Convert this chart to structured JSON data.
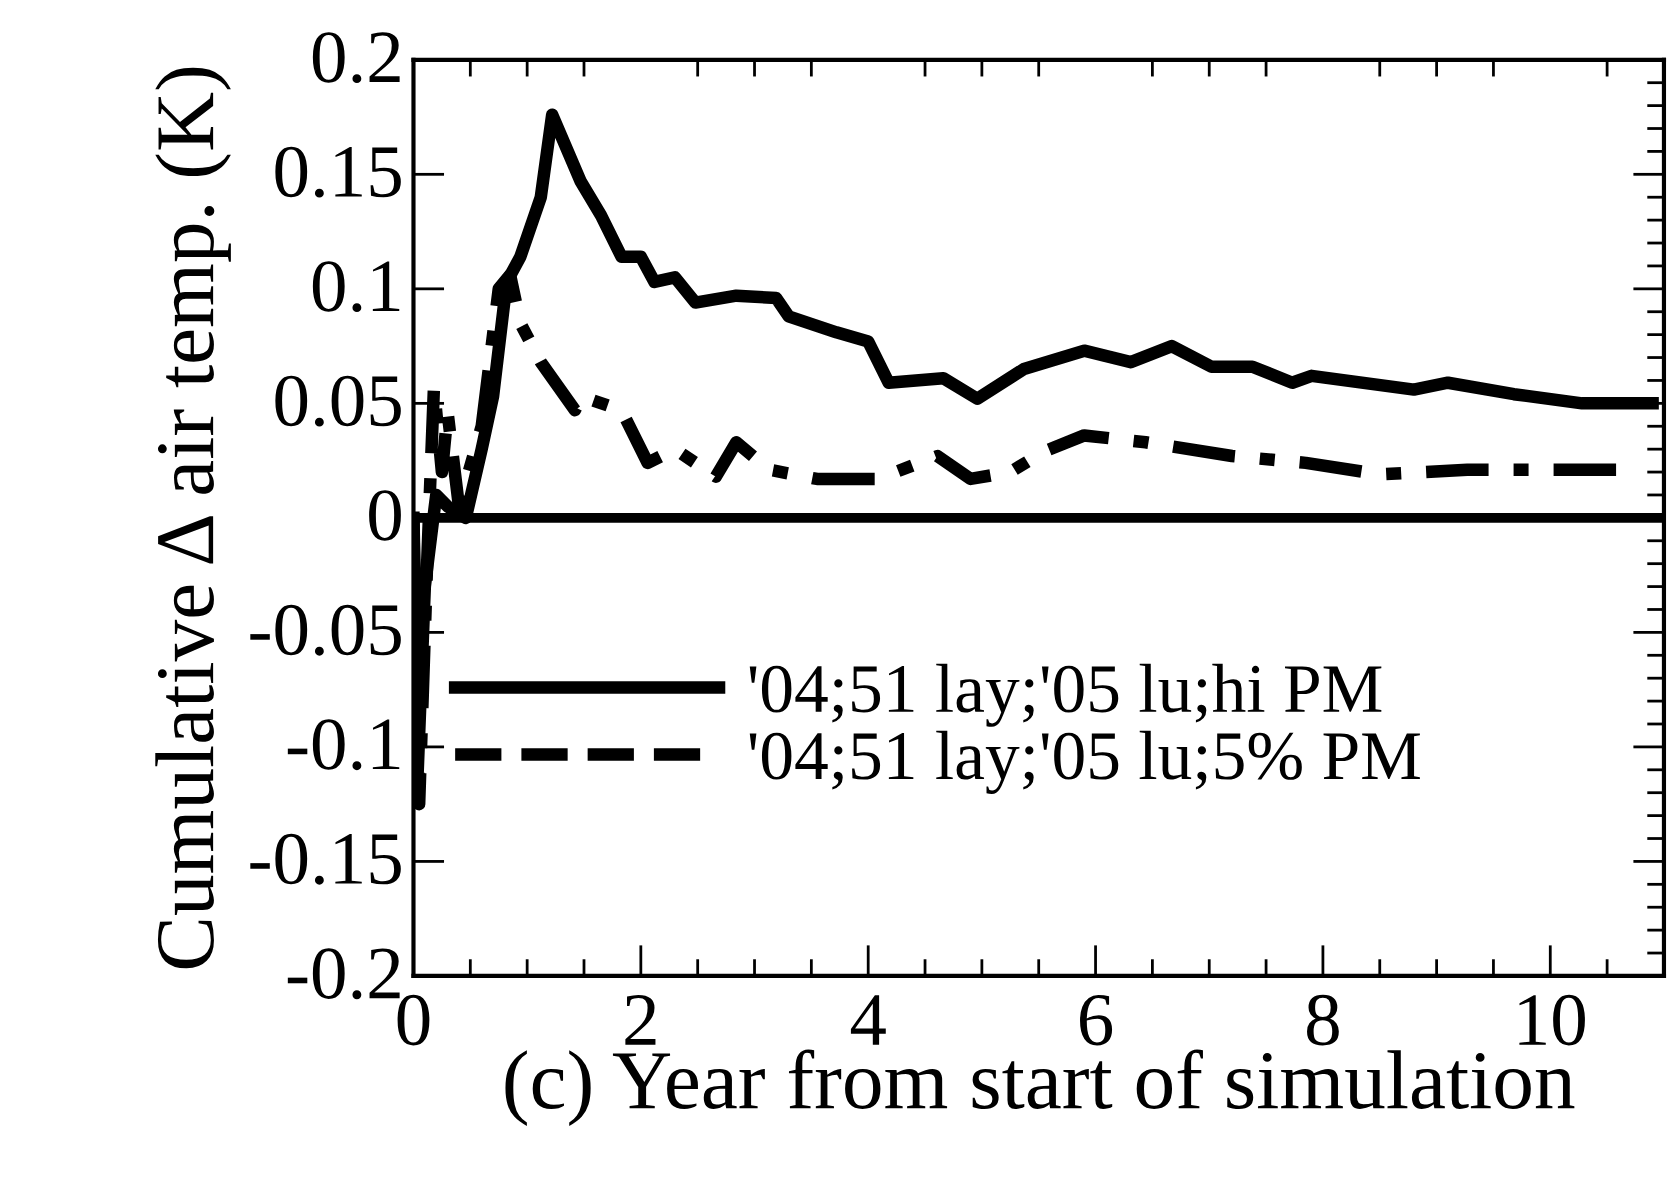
{
  "chart_data": {
    "type": "line",
    "xlabel": "(c) Year from start of simulation",
    "ylabel": "Cumulative Δ air temp. (K)",
    "xlim": [
      0,
      11
    ],
    "xticks": [
      0,
      2,
      4,
      6,
      8,
      10
    ],
    "ylim": [
      -0.2,
      0.2
    ],
    "yticks": [
      -0.2,
      -0.15,
      -0.1,
      -0.05,
      0,
      0.05,
      0.1,
      0.15,
      0.2
    ],
    "grid": false,
    "legend": "left",
    "marker": "none",
    "ref_lines": [
      {
        "axis": "y",
        "value": 0,
        "color": "#000000",
        "line_style": "solid"
      }
    ],
    "series": [
      {
        "name": "'04;51 lay;'05 lu;hi PM",
        "color": "#000000",
        "line_style": "solid",
        "x": [
          0,
          0.03,
          0.1,
          0.2,
          0.3,
          0.46,
          0.6,
          0.7,
          0.82,
          0.94,
          1.12,
          1.22,
          1.47,
          1.65,
          1.83,
          2.0,
          2.12,
          2.3,
          2.48,
          2.84,
          3.19,
          3.3,
          3.72,
          4.0,
          4.18,
          4.66,
          4.96,
          5.37,
          5.9,
          6.31,
          6.67,
          7.02,
          7.38,
          7.73,
          7.9,
          8.8,
          9.1,
          9.68,
          10.28,
          10.9
        ],
        "values": [
          0,
          -0.12,
          -0.03,
          0.01,
          0.005,
          0,
          0.03,
          0.053,
          0.103,
          0.114,
          0.14,
          0.176,
          0.147,
          0.132,
          0.114,
          0.114,
          0.103,
          0.105,
          0.094,
          0.097,
          0.096,
          0.088,
          0.081,
          0.077,
          0.059,
          0.061,
          0.052,
          0.065,
          0.073,
          0.068,
          0.075,
          0.066,
          0.066,
          0.059,
          0.062,
          0.056,
          0.059,
          0.054,
          0.05,
          0.05
        ]
      },
      {
        "name": "'04;51 lay;'05 lu;5% PM",
        "color": "#000000",
        "line_style": "dashed",
        "x": [
          0,
          0.05,
          0.12,
          0.18,
          0.25,
          0.3,
          0.4,
          0.6,
          0.75,
          0.85,
          0.94,
          1.12,
          1.42,
          1.48,
          1.83,
          2.06,
          2.3,
          2.66,
          2.84,
          3.13,
          3.55,
          4.08,
          4.61,
          4.9,
          5.25,
          5.55,
          5.9,
          6.44,
          7.2,
          7.85,
          8.5,
          9.27,
          10.67
        ],
        "values": [
          0,
          -0.125,
          -0.02,
          0.057,
          0.02,
          0.046,
          0.005,
          0.04,
          0.1,
          0.106,
          0.085,
          0.068,
          0.047,
          0.053,
          0.047,
          0.024,
          0.03,
          0.018,
          0.033,
          0.021,
          0.017,
          0.017,
          0.027,
          0.017,
          0.02,
          0.029,
          0.036,
          0.033,
          0.027,
          0.024,
          0.019,
          0.021,
          0.021
        ]
      }
    ]
  }
}
